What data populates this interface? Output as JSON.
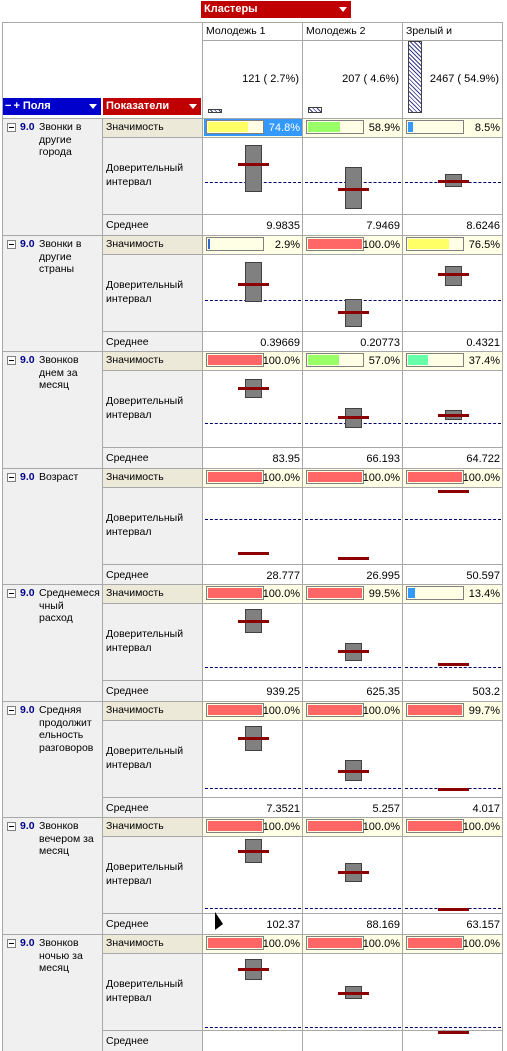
{
  "header": {
    "clusters_label": "Кластеры",
    "fields_label": "Поля",
    "fields_plus": "+",
    "indicators_label": "Показатели"
  },
  "clusters": [
    {
      "name": "Молодежь 1",
      "count_text": "121 ( 2.7%)",
      "share": 0.027
    },
    {
      "name": "Молодежь 2",
      "count_text": "207 ( 4.6%)",
      "share": 0.046
    },
    {
      "name": "Зрелый и",
      "count_text": "2467 ( 54.9%)",
      "share": 0.549
    }
  ],
  "row_labels": {
    "significance": "Значимость",
    "ci_line1": "Доверительный",
    "ci_line2": "интервал",
    "mean": "Среднее"
  },
  "groups": [
    {
      "num": "9.0",
      "name_lines": [
        "Звонки в",
        "другие",
        "города"
      ],
      "significance": [
        {
          "text": "74.8%",
          "value": 0.748,
          "color": "#ffff66",
          "selected": true
        },
        {
          "text": "58.9%",
          "value": 0.589,
          "color": "#99ff66"
        },
        {
          "text": "8.5%",
          "value": 0.085,
          "color": "#3399ff"
        }
      ],
      "means": [
        "9.9835",
        "7.9469",
        "8.6246"
      ]
    },
    {
      "num": "9.0",
      "name_lines": [
        "Звонки в",
        "другие",
        "страны"
      ],
      "significance": [
        {
          "text": "2.9%",
          "value": 0.029,
          "color": "#3366cc"
        },
        {
          "text": "100.0%",
          "value": 1.0,
          "color": "#ff6666"
        },
        {
          "text": "76.5%",
          "value": 0.765,
          "color": "#ffff66"
        }
      ],
      "means": [
        "0.39669",
        "0.20773",
        "0.4321"
      ]
    },
    {
      "num": "9.0",
      "name_lines": [
        "Звонков",
        "днем за",
        "месяц"
      ],
      "significance": [
        {
          "text": "100.0%",
          "value": 1.0,
          "color": "#ff6666"
        },
        {
          "text": "57.0%",
          "value": 0.57,
          "color": "#99ff66"
        },
        {
          "text": "37.4%",
          "value": 0.374,
          "color": "#66ffaa"
        }
      ],
      "means": [
        "83.95",
        "66.193",
        "64.722"
      ]
    },
    {
      "num": "9.0",
      "name_lines": [
        "Возраст"
      ],
      "significance": [
        {
          "text": "100.0%",
          "value": 1.0,
          "color": "#ff6666"
        },
        {
          "text": "100.0%",
          "value": 1.0,
          "color": "#ff6666"
        },
        {
          "text": "100.0%",
          "value": 1.0,
          "color": "#ff6666"
        }
      ],
      "means": [
        "28.777",
        "26.995",
        "50.597"
      ]
    },
    {
      "num": "9.0",
      "name_lines": [
        "Среднемеся",
        "чный",
        "расход"
      ],
      "significance": [
        {
          "text": "100.0%",
          "value": 1.0,
          "color": "#ff6666"
        },
        {
          "text": "99.5%",
          "value": 0.995,
          "color": "#ff6666"
        },
        {
          "text": "13.4%",
          "value": 0.134,
          "color": "#3399ff"
        }
      ],
      "means": [
        "939.25",
        "625.35",
        "503.2"
      ]
    },
    {
      "num": "9.0",
      "name_lines": [
        "Средняя",
        "продолжит",
        "ельность",
        "разговоров"
      ],
      "significance": [
        {
          "text": "100.0%",
          "value": 1.0,
          "color": "#ff6666"
        },
        {
          "text": "100.0%",
          "value": 1.0,
          "color": "#ff6666"
        },
        {
          "text": "99.7%",
          "value": 0.997,
          "color": "#ff6666"
        }
      ],
      "means": [
        "7.3521",
        "5.257",
        "4.017"
      ]
    },
    {
      "num": "9.0",
      "name_lines": [
        "Звонков",
        "вечером за",
        "месяц"
      ],
      "significance": [
        {
          "text": "100.0%",
          "value": 1.0,
          "color": "#ff6666"
        },
        {
          "text": "100.0%",
          "value": 1.0,
          "color": "#ff6666"
        },
        {
          "text": "100.0%",
          "value": 1.0,
          "color": "#ff6666"
        }
      ],
      "means": [
        "102.37",
        "88.169",
        "63.157"
      ]
    },
    {
      "num": "9.0",
      "name_lines": [
        "Звонков",
        "ночью за",
        "месяц"
      ],
      "significance": [
        {
          "text": "100.0%",
          "value": 1.0,
          "color": "#ff6666"
        },
        {
          "text": "100.0%",
          "value": 1.0,
          "color": "#ff6666"
        },
        {
          "text": "100.0%",
          "value": 1.0,
          "color": "#ff6666"
        }
      ],
      "means": [
        "",
        "",
        ""
      ]
    }
  ]
}
